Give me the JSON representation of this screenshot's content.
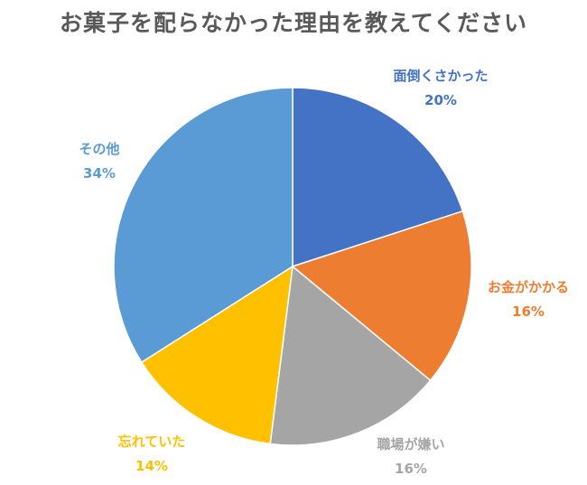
{
  "chart_data": {
    "type": "pie",
    "title": "お菓子を配らなかった理由を教えてください",
    "slices": [
      {
        "label": "面倒くさかった",
        "value": 20,
        "display": "20%",
        "color": "#4472C4"
      },
      {
        "label": "お金がかかる",
        "value": 16,
        "display": "16%",
        "color": "#ED7D31"
      },
      {
        "label": "職場が嫌い",
        "value": 16,
        "display": "16%",
        "color": "#A5A5A5"
      },
      {
        "label": "忘れていた",
        "value": 14,
        "display": "14%",
        "color": "#FFC000"
      },
      {
        "label": "その他",
        "value": 34,
        "display": "34%",
        "color": "#5B9BD5"
      }
    ],
    "start": "12 o'clock",
    "direction": "clockwise",
    "legend": "none"
  }
}
